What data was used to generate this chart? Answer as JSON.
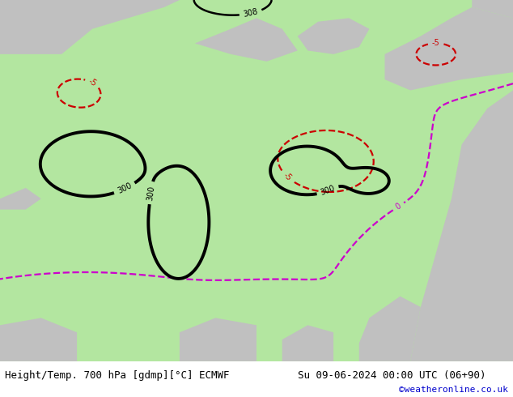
{
  "title_left": "Height/Temp. 700 hPa [gdmp][°C] ECMWF",
  "title_right": "Su 09-06-2024 00:00 UTC (06+90)",
  "watermark": "©weatheronline.co.uk",
  "bg_green": "#b3e6a0",
  "bg_gray": "#c0c0c0",
  "bg_white": "#ffffff",
  "c_black": "#000000",
  "c_red": "#cc0000",
  "c_orange": "#cc6600",
  "c_magenta": "#cc00cc",
  "c_blue": "#0000cc",
  "title_fontsize": 9,
  "figsize": [
    6.34,
    4.9
  ],
  "dpi": 100
}
